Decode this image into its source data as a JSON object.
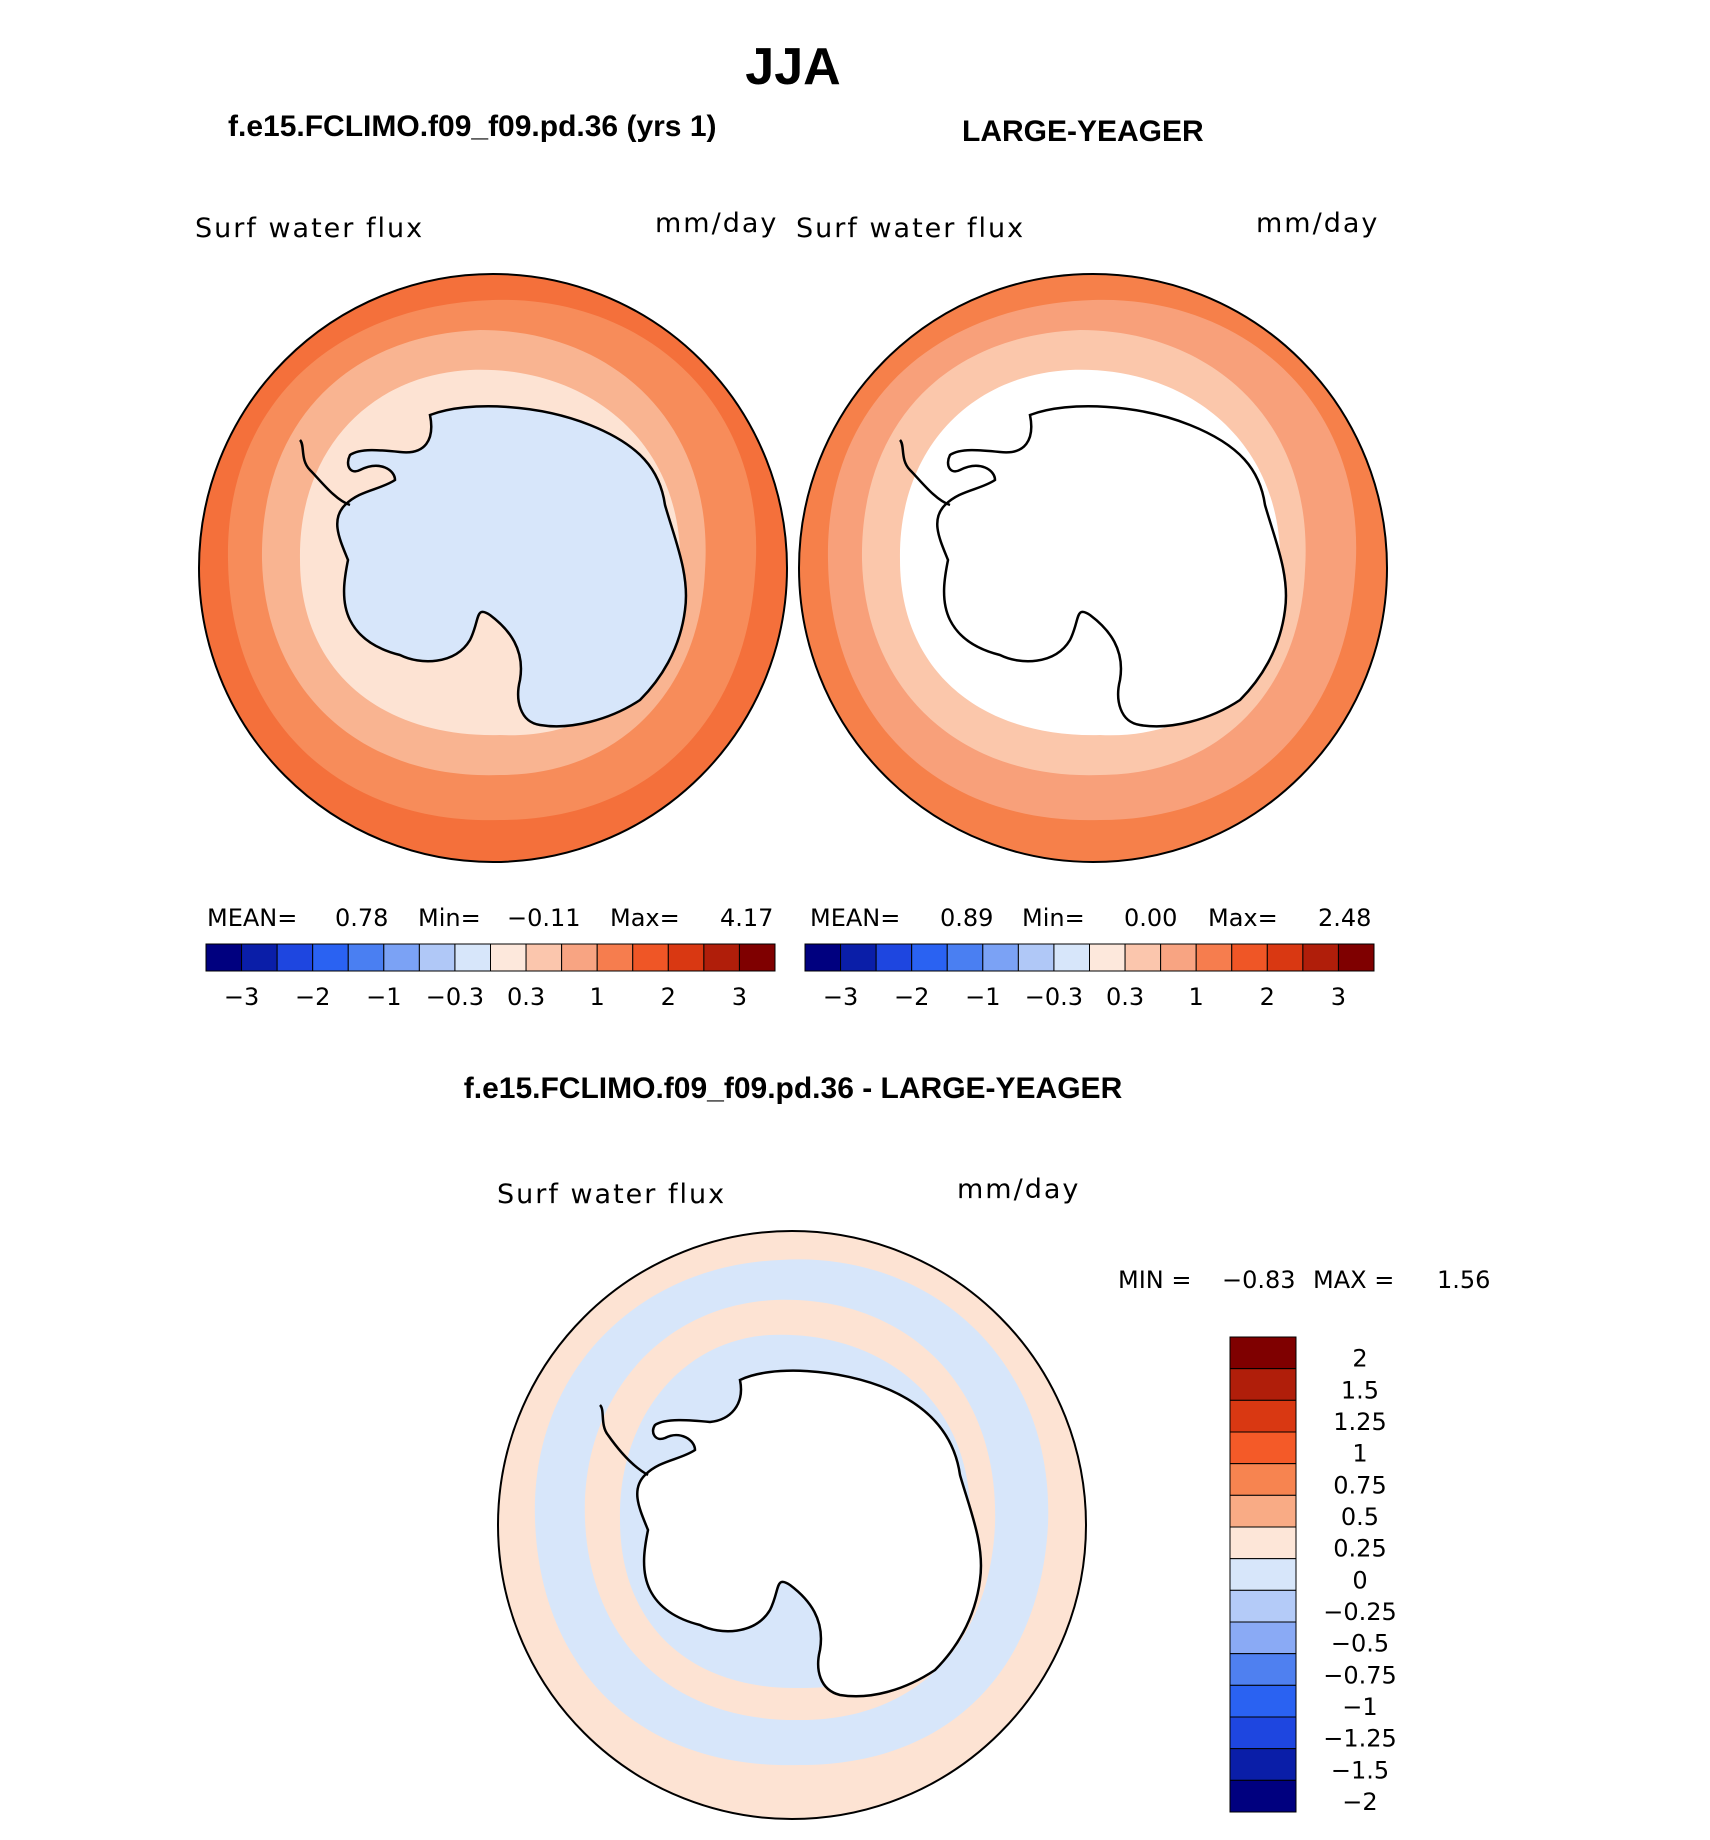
{
  "title": "JJA",
  "panels": [
    {
      "case_title": "f.e15.FCLIMO.f09_f09.pd.36 (yrs 1)",
      "variable": "Surf water flux",
      "units": "mm/day",
      "stats": {
        "mean_label": "MEAN=",
        "mean": "0.78",
        "min_label": "Min=",
        "min": "−0.11",
        "max_label": "Max=",
        "max": "4.17"
      },
      "colorbar": {
        "colors": [
          "#00007f",
          "#0a1ea8",
          "#1e46e0",
          "#2a62f2",
          "#4a7ff2",
          "#7ba2f5",
          "#b0c8f7",
          "#d7e6fa",
          "#fde8dc",
          "#fbc6ad",
          "#f8a482",
          "#f67d4e",
          "#ef5626",
          "#d93812",
          "#b01e0a",
          "#7f0000"
        ],
        "tick_labels": [
          "−3",
          "−2",
          "−1",
          "−0.3",
          "0.3",
          "1",
          "2",
          "3"
        ]
      },
      "ocean_rings": [
        "#f4703b",
        "#f78c5a",
        "#f9b491",
        "#fde3d3"
      ],
      "continent_fill": "#d7e6fa"
    },
    {
      "case_title": "LARGE-YEAGER",
      "variable": "Surf water flux",
      "units": "mm/day",
      "stats": {
        "mean_label": "MEAN=",
        "mean": "0.89",
        "min_label": "Min=",
        "min": "0.00",
        "max_label": "Max=",
        "max": "2.48"
      },
      "colorbar": {
        "colors": [
          "#00007f",
          "#0a1ea8",
          "#1e46e0",
          "#2a62f2",
          "#4a7ff2",
          "#7ba2f5",
          "#b0c8f7",
          "#d7e6fa",
          "#fde8dc",
          "#fbc6ad",
          "#f8a482",
          "#f67d4e",
          "#ef5626",
          "#d93812",
          "#b01e0a",
          "#7f0000"
        ],
        "tick_labels": [
          "−3",
          "−2",
          "−1",
          "−0.3",
          "0.3",
          "1",
          "2",
          "3"
        ]
      },
      "ocean_rings": [
        "#f6804a",
        "#f8a07a",
        "#fbc7ab",
        "#ffffff"
      ],
      "continent_fill": "#ffffff"
    }
  ],
  "diff": {
    "title": "f.e15.FCLIMO.f09_f09.pd.36 - LARGE-YEAGER",
    "variable": "Surf water flux",
    "units": "mm/day",
    "minmax": {
      "min_label": "MIN =",
      "min": "−0.83",
      "max_label": "MAX =",
      "max": "1.56"
    },
    "colorbar": {
      "colors": [
        "#7f0000",
        "#b01e0a",
        "#d93812",
        "#f45a28",
        "#f78450",
        "#f9ab85",
        "#fde6d8",
        "#d7e6fa",
        "#b4cbf8",
        "#8aaaf5",
        "#4f80f0",
        "#2a62f2",
        "#1e46e0",
        "#0a1ea8",
        "#00007f"
      ],
      "tick_labels": [
        "2",
        "1.5",
        "1.25",
        "1",
        "0.75",
        "0.5",
        "0.25",
        "0",
        "−0.25",
        "−0.5",
        "−0.75",
        "−1",
        "−1.25",
        "−1.5",
        "−2"
      ]
    },
    "ocean_rings": [
      "#fde3d3",
      "#d7e6fa",
      "#fde3d3",
      "#d7e6fa"
    ],
    "continent_fill": "#ffffff"
  }
}
